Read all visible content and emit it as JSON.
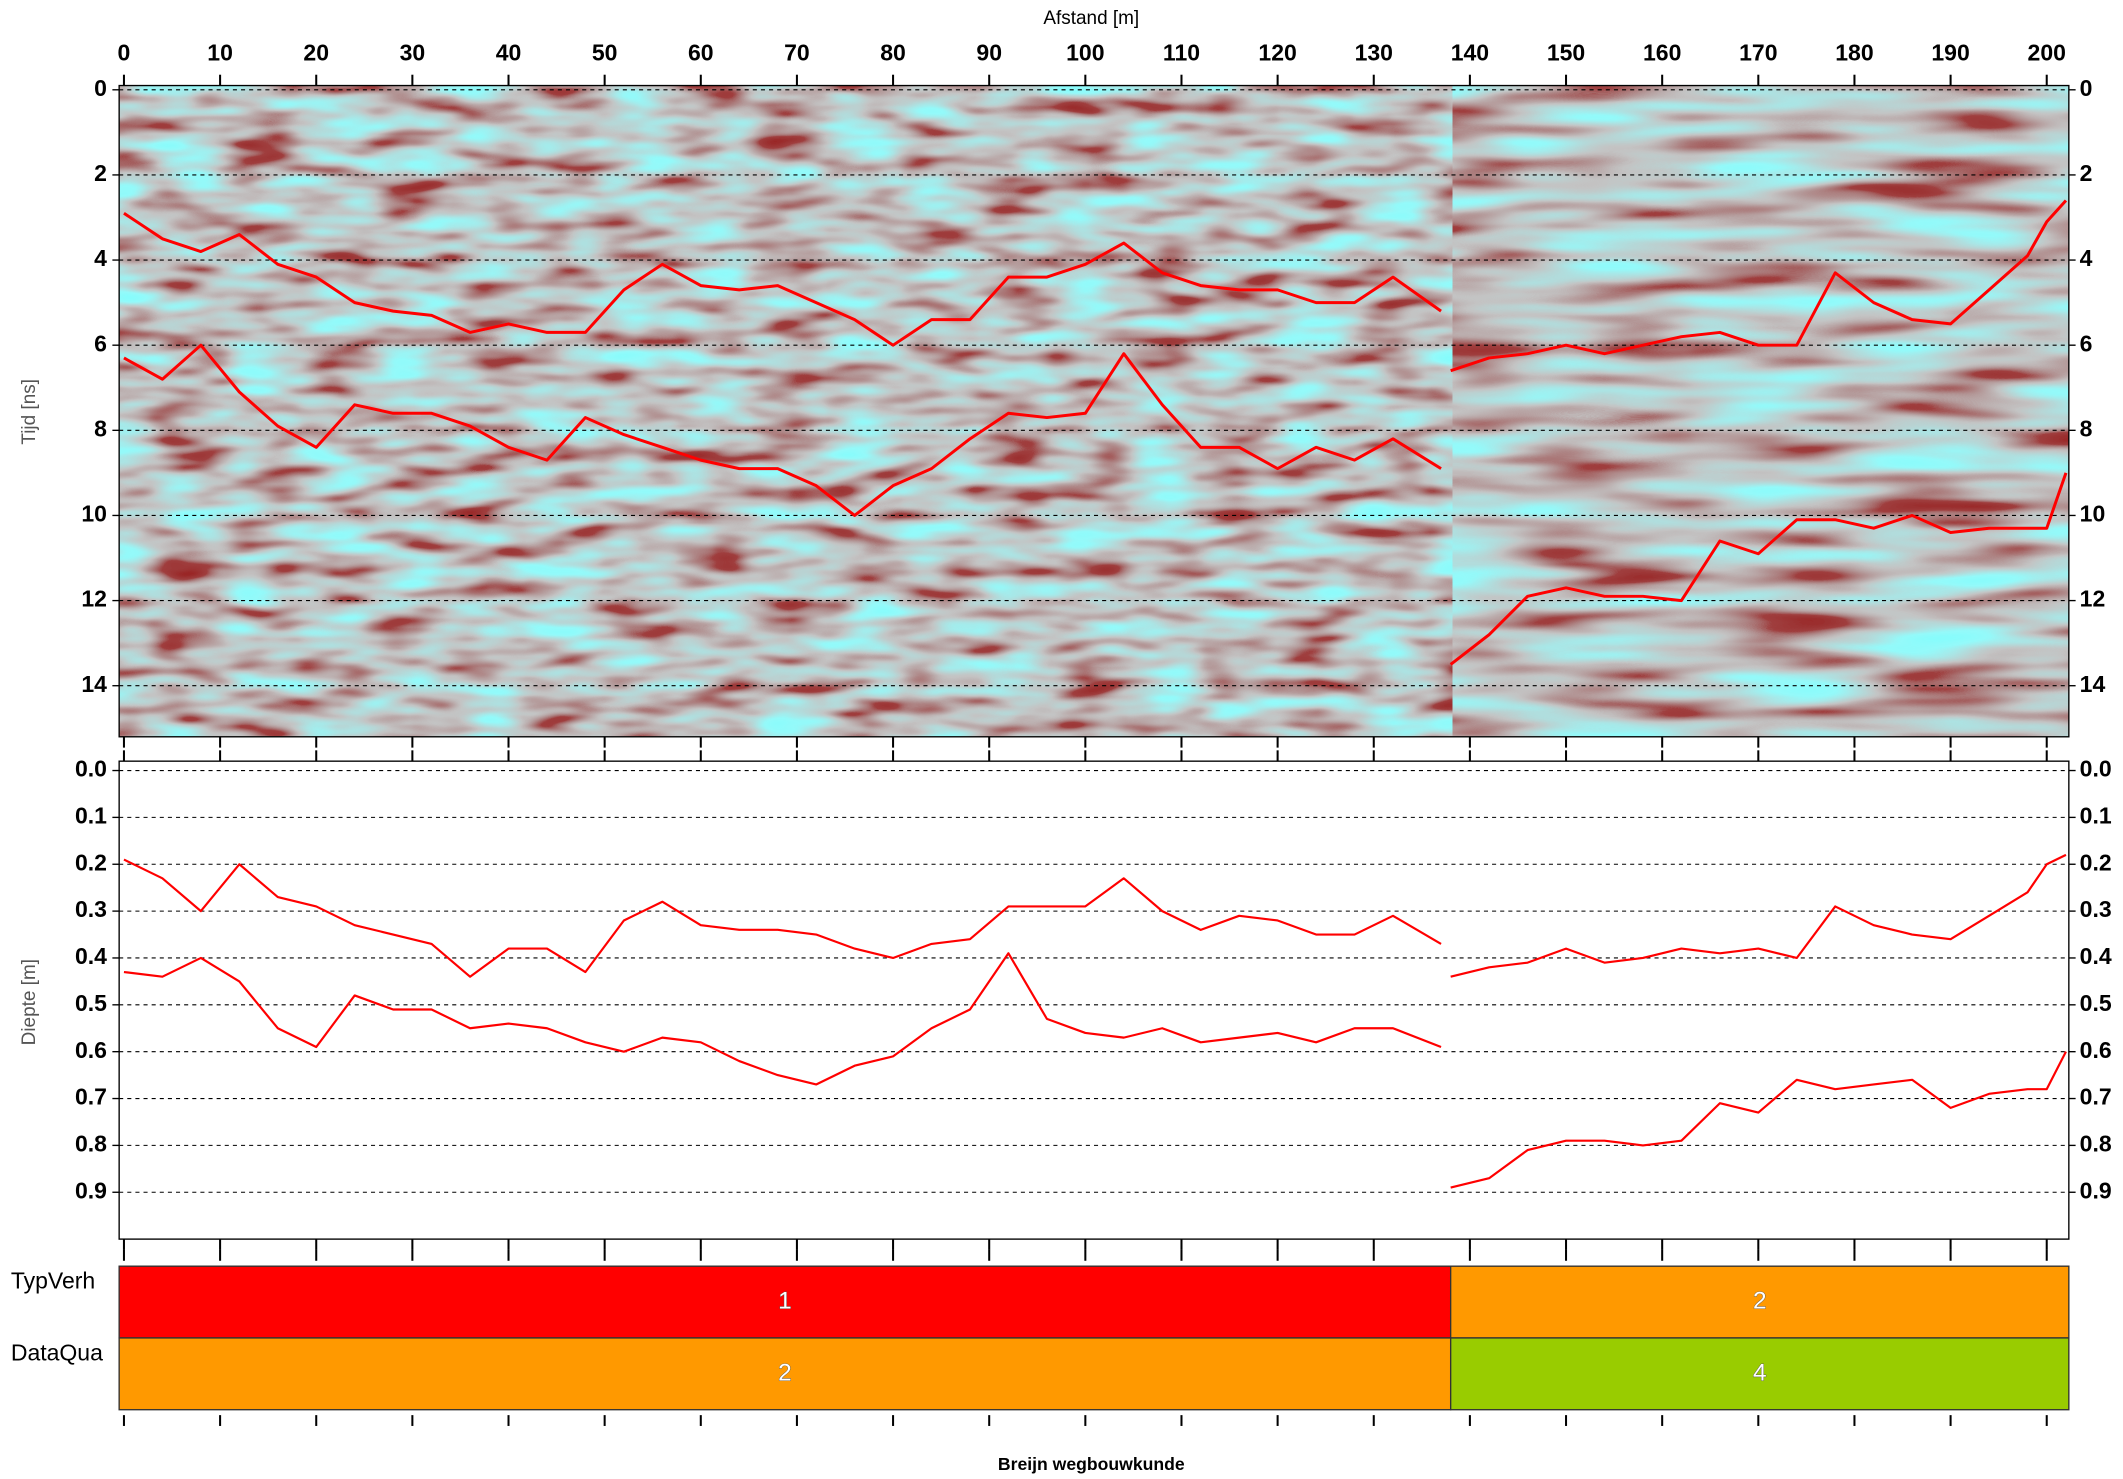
{
  "chart_data": [
    {
      "type": "line",
      "xlabel": "Afstand [m]",
      "ylabel": "Tijd [ns]",
      "xlim": [
        -0.5,
        202.3
      ],
      "ylim": [
        15.2,
        -0.1
      ],
      "xticks": [
        0,
        10,
        20,
        30,
        40,
        50,
        60,
        70,
        80,
        90,
        100,
        110,
        120,
        130,
        140,
        150,
        160,
        170,
        180,
        190,
        200
      ],
      "yticks": [
        0,
        2,
        4,
        6,
        8,
        10,
        12,
        14
      ],
      "grid": true,
      "x": [
        0,
        4,
        8,
        12,
        16,
        20,
        24,
        28,
        32,
        36,
        40,
        44,
        48,
        52,
        56,
        60,
        64,
        68,
        72,
        76,
        80,
        84,
        88,
        92,
        96,
        100,
        104,
        108,
        112,
        116,
        120,
        124,
        128,
        132,
        137,
        138,
        142,
        146,
        150,
        154,
        158,
        162,
        166,
        170,
        174,
        178,
        182,
        186,
        190,
        194,
        198,
        200,
        202
      ],
      "series": [
        {
          "color": "#ff0000",
          "values": [
            2.9,
            3.5,
            3.8,
            3.4,
            4.1,
            4.4,
            5.0,
            5.2,
            5.3,
            5.7,
            5.5,
            5.7,
            5.7,
            4.7,
            4.1,
            4.6,
            4.7,
            4.6,
            5.0,
            5.4,
            6.0,
            5.4,
            5.4,
            4.4,
            4.4,
            4.1,
            3.6,
            4.3,
            4.6,
            4.7,
            4.7,
            5.0,
            5.0,
            4.4,
            5.2,
            null,
            null,
            null,
            null,
            null,
            null,
            null,
            null,
            null,
            null,
            null,
            null,
            null,
            null,
            null,
            null,
            null,
            null
          ]
        },
        {
          "color": "#ff0000",
          "values": [
            6.3,
            6.8,
            6.0,
            7.1,
            7.9,
            8.4,
            7.4,
            7.6,
            7.6,
            7.9,
            8.4,
            8.7,
            7.7,
            8.1,
            8.4,
            8.7,
            8.9,
            8.9,
            9.3,
            10.0,
            9.3,
            8.9,
            8.2,
            7.6,
            7.7,
            7.6,
            6.2,
            7.4,
            8.4,
            8.4,
            8.9,
            8.4,
            8.7,
            8.2,
            8.9,
            null,
            null,
            null,
            null,
            null,
            null,
            null,
            null,
            null,
            null,
            null,
            null,
            null,
            null,
            null,
            null,
            null,
            null
          ]
        },
        {
          "color": "#ff0000",
          "values": [
            null,
            null,
            null,
            null,
            null,
            null,
            null,
            null,
            null,
            null,
            null,
            null,
            null,
            null,
            null,
            null,
            null,
            null,
            null,
            null,
            null,
            null,
            null,
            null,
            null,
            null,
            null,
            null,
            null,
            null,
            null,
            null,
            null,
            null,
            null,
            6.6,
            6.3,
            6.2,
            6.0,
            6.2,
            6.0,
            5.8,
            5.7,
            6.0,
            6.0,
            4.3,
            5.0,
            5.4,
            5.5,
            4.7,
            3.9,
            3.1,
            2.6
          ]
        },
        {
          "color": "#ff0000",
          "values": [
            null,
            null,
            null,
            null,
            null,
            null,
            null,
            null,
            null,
            null,
            null,
            null,
            null,
            null,
            null,
            null,
            null,
            null,
            null,
            null,
            null,
            null,
            null,
            null,
            null,
            null,
            null,
            null,
            null,
            null,
            null,
            null,
            null,
            null,
            null,
            13.5,
            12.8,
            11.9,
            11.7,
            11.9,
            11.9,
            12.0,
            10.6,
            10.9,
            10.1,
            10.1,
            10.3,
            10.0,
            10.4,
            10.3,
            10.3,
            10.3,
            9.0
          ]
        }
      ]
    },
    {
      "type": "line",
      "ylabel": "Diepte [m]",
      "xlim": [
        -0.5,
        202.3
      ],
      "ylim": [
        1.0,
        -0.02
      ],
      "yticks": [
        {
          "value": 0,
          "label": "0.0"
        },
        0.1,
        0.2,
        0.3,
        0.4,
        0.5,
        0.6,
        0.7,
        0.8,
        0.9
      ],
      "grid": true,
      "x": [
        0,
        4,
        8,
        12,
        16,
        20,
        24,
        28,
        32,
        36,
        40,
        44,
        48,
        52,
        56,
        60,
        64,
        68,
        72,
        76,
        80,
        84,
        88,
        92,
        96,
        100,
        104,
        108,
        112,
        116,
        120,
        124,
        128,
        132,
        137,
        138,
        142,
        146,
        150,
        154,
        158,
        162,
        166,
        170,
        174,
        178,
        182,
        186,
        190,
        194,
        198,
        200,
        202
      ],
      "series": [
        {
          "color": "#ff0000",
          "values": [
            0.19,
            0.23,
            0.3,
            0.2,
            0.27,
            0.29,
            0.33,
            0.35,
            0.37,
            0.44,
            0.38,
            0.38,
            0.43,
            0.32,
            0.28,
            0.33,
            0.34,
            0.34,
            0.35,
            0.38,
            0.4,
            0.37,
            0.36,
            0.29,
            0.29,
            0.29,
            0.23,
            0.3,
            0.34,
            0.31,
            0.32,
            0.35,
            0.35,
            0.31,
            0.37,
            null,
            null,
            null,
            null,
            null,
            null,
            null,
            null,
            null,
            null,
            null,
            null,
            null,
            null,
            null,
            null,
            null,
            null
          ]
        },
        {
          "color": "#ff0000",
          "values": [
            0.43,
            0.44,
            0.4,
            0.45,
            0.55,
            0.59,
            0.48,
            0.51,
            0.51,
            0.55,
            0.54,
            0.55,
            0.58,
            0.6,
            0.57,
            0.58,
            0.62,
            0.65,
            0.67,
            0.63,
            0.61,
            0.55,
            0.51,
            0.39,
            0.53,
            0.56,
            0.57,
            0.55,
            0.58,
            0.57,
            0.56,
            0.58,
            0.55,
            0.55,
            0.59,
            null,
            null,
            null,
            null,
            null,
            null,
            null,
            null,
            null,
            null,
            null,
            null,
            null,
            null,
            null,
            null,
            null,
            null
          ]
        },
        {
          "color": "#ff0000",
          "values": [
            null,
            null,
            null,
            null,
            null,
            null,
            null,
            null,
            null,
            null,
            null,
            null,
            null,
            null,
            null,
            null,
            null,
            null,
            null,
            null,
            null,
            null,
            null,
            null,
            null,
            null,
            null,
            null,
            null,
            null,
            null,
            null,
            null,
            null,
            null,
            0.44,
            0.42,
            0.41,
            0.38,
            0.41,
            0.4,
            0.38,
            0.39,
            0.38,
            0.4,
            0.29,
            0.33,
            0.35,
            0.36,
            0.31,
            0.26,
            0.2,
            0.18
          ]
        },
        {
          "color": "#ff0000",
          "values": [
            null,
            null,
            null,
            null,
            null,
            null,
            null,
            null,
            null,
            null,
            null,
            null,
            null,
            null,
            null,
            null,
            null,
            null,
            null,
            null,
            null,
            null,
            null,
            null,
            null,
            null,
            null,
            null,
            null,
            null,
            null,
            null,
            null,
            null,
            null,
            0.89,
            0.87,
            0.81,
            0.79,
            0.79,
            0.8,
            0.79,
            0.71,
            0.73,
            0.66,
            0.68,
            0.67,
            0.66,
            0.72,
            0.69,
            0.68,
            0.68,
            0.6
          ]
        }
      ]
    },
    {
      "type": "band",
      "xlim": [
        -0.5,
        202.3
      ],
      "rows": [
        {
          "label": "TypVerh",
          "segments": [
            {
              "start": -0.5,
              "end": 138,
              "value": 1,
              "color": "#ff0000"
            },
            {
              "start": 138,
              "end": 202.3,
              "value": 2,
              "color": "#ff9900"
            }
          ]
        },
        {
          "label": "DataQua",
          "segments": [
            {
              "start": -0.5,
              "end": 138,
              "value": 2,
              "color": "#ff9900"
            },
            {
              "start": 138,
              "end": 202.3,
              "value": 4,
              "color": "#99cc00"
            }
          ]
        }
      ]
    }
  ],
  "footer": "Breijn wegbouwkunde"
}
